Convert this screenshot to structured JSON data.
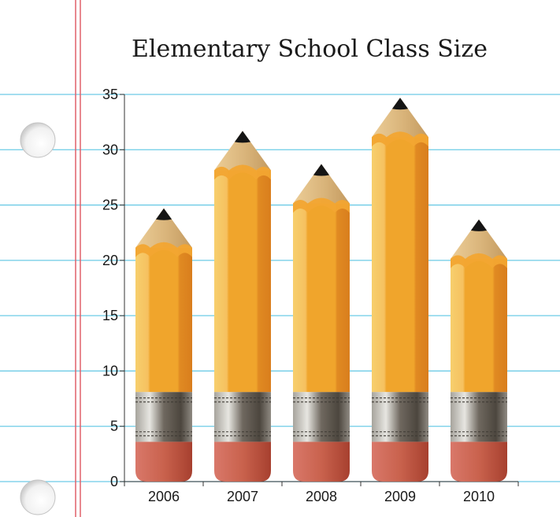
{
  "chart_data": {
    "type": "bar",
    "title": "Elementary School Class Size",
    "xlabel": "",
    "ylabel": "",
    "categories": [
      "2006",
      "2007",
      "2008",
      "2009",
      "2010"
    ],
    "values": [
      24.7,
      31.7,
      28.7,
      34.7,
      23.7
    ],
    "ylim": [
      0,
      35
    ],
    "yticks": [
      0,
      5,
      10,
      15,
      20,
      25,
      30,
      35
    ],
    "grid": true,
    "legend": "none",
    "bar_style": "pencil",
    "colors": {
      "grid": "#6ccbe6",
      "margin_line": "#e0606a",
      "pencil_body": "#f2a531",
      "pencil_wood": "#dcb67e",
      "pencil_lead": "#151515",
      "ferrule": "#7c766c",
      "eraser": "#c96550"
    }
  }
}
